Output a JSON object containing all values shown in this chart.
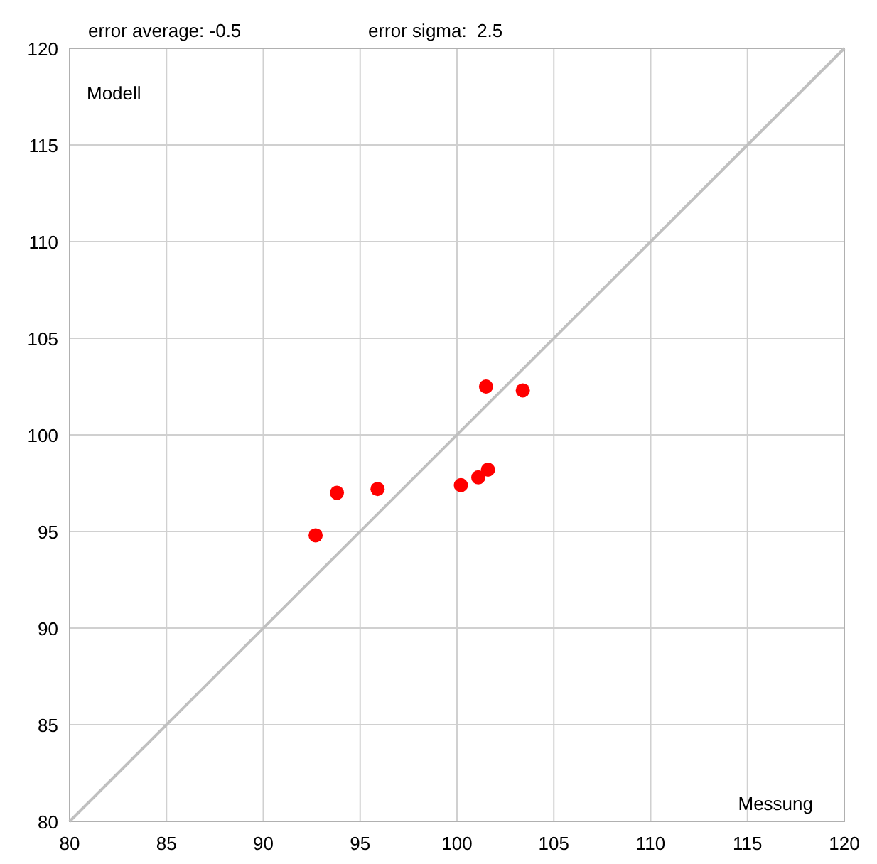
{
  "chart_data": {
    "type": "scatter",
    "xlabel": "Messung",
    "ylabel": "Modell",
    "annotations": [
      "error average: -0.5",
      "error sigma:  2.5"
    ],
    "xlim": [
      80,
      120
    ],
    "ylim": [
      80,
      120
    ],
    "xticks": [
      80,
      85,
      90,
      95,
      100,
      105,
      110,
      115,
      120
    ],
    "yticks": [
      80,
      85,
      90,
      95,
      100,
      105,
      110,
      115,
      120
    ],
    "grid": true,
    "series": [
      {
        "type": "line",
        "color": "#c0c0c0",
        "x": [
          80,
          120
        ],
        "values": [
          80,
          120
        ]
      },
      {
        "marker": "circle",
        "color": "#ff0000",
        "x": [
          92.7,
          93.8,
          95.9,
          100.2,
          101.1,
          101.6,
          101.5,
          103.4
        ],
        "values": [
          94.8,
          97.0,
          97.2,
          97.4,
          97.8,
          98.2,
          102.5,
          102.3
        ]
      }
    ]
  }
}
